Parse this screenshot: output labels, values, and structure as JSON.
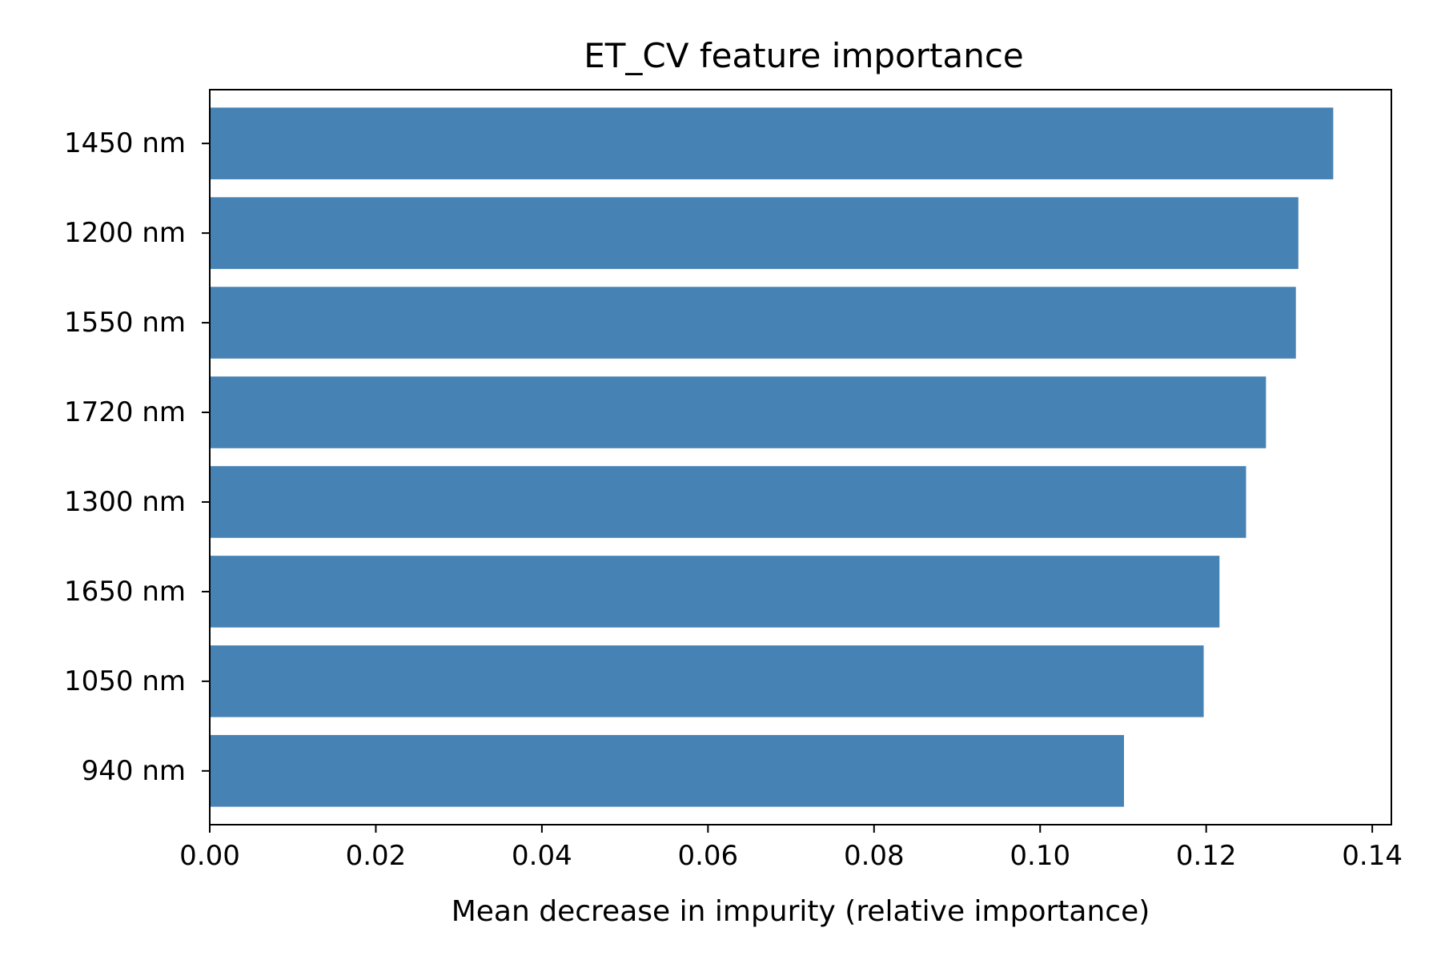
{
  "chart_data": {
    "type": "bar",
    "orientation": "horizontal",
    "title": "ET_CV feature importance",
    "xlabel": "Mean decrease in impurity (relative importance)",
    "ylabel": "",
    "categories": [
      "1450 nm",
      "1200 nm",
      "1550 nm",
      "1720 nm",
      "1300 nm",
      "1650 nm",
      "1050 nm",
      "940 nm"
    ],
    "values": [
      0.1353,
      0.1311,
      0.1308,
      0.1272,
      0.1248,
      0.1216,
      0.1197,
      0.1101
    ],
    "xlim": [
      0,
      0.1423
    ],
    "xticks": [
      "0.00",
      "0.02",
      "0.04",
      "0.06",
      "0.08",
      "0.10",
      "0.12",
      "0.14"
    ],
    "grid": false,
    "legend": "none",
    "bar_color": "#4682b4"
  }
}
